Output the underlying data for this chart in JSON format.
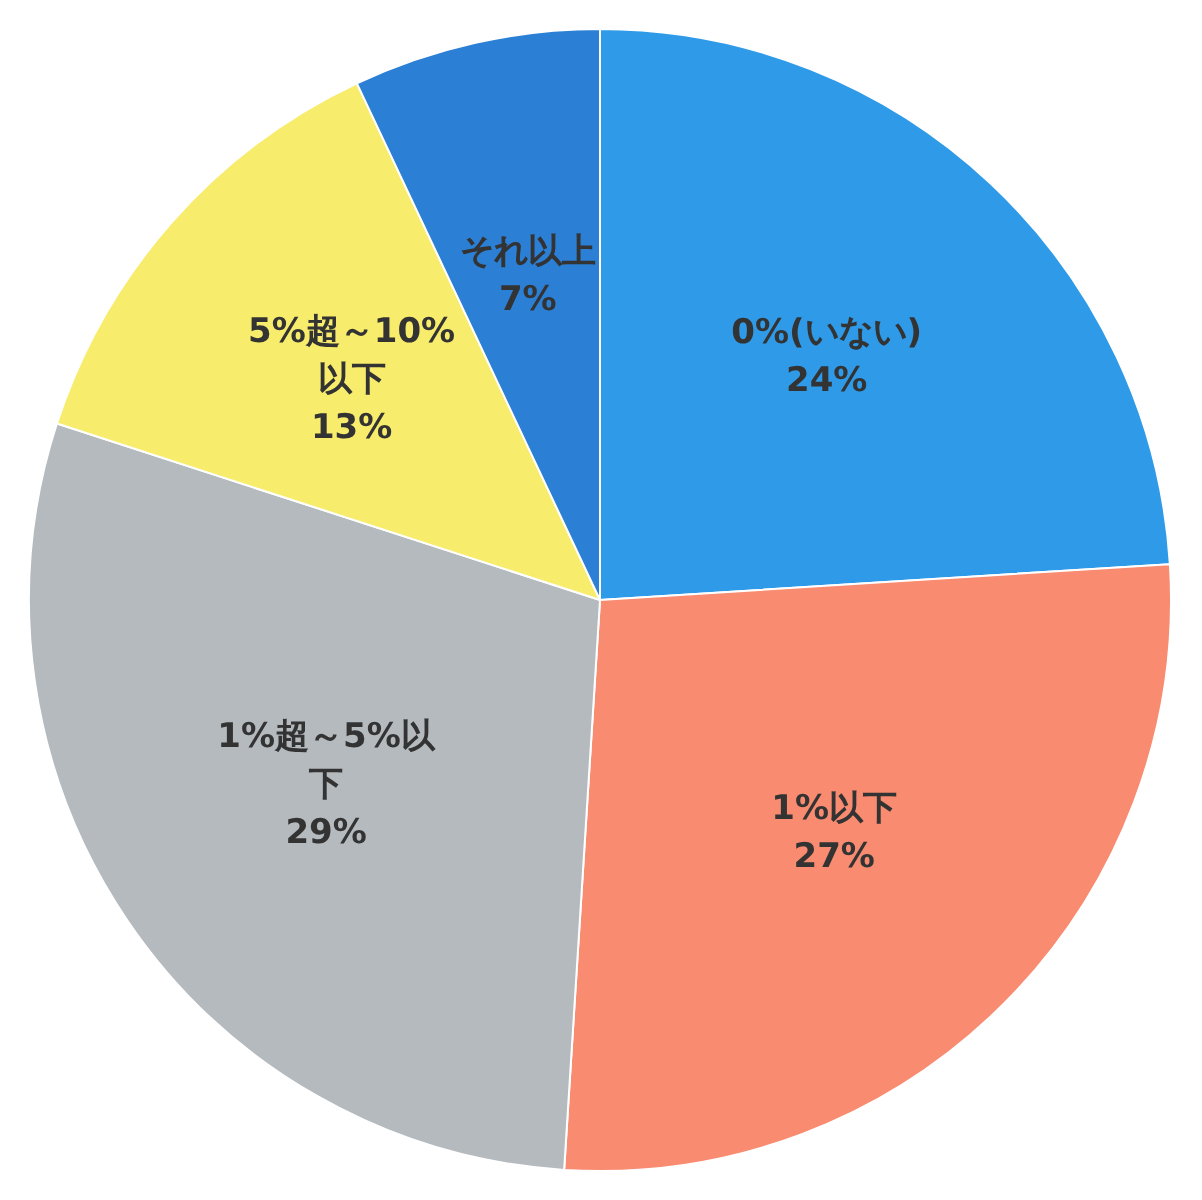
{
  "chart_data": {
    "type": "pie",
    "categories": [
      "0%(いない)",
      "1%以下",
      "1%超～5%以下",
      "5%超～10%以下",
      "それ以上"
    ],
    "values": [
      24,
      27,
      29,
      13,
      7
    ],
    "value_labels": [
      "24%",
      "27%",
      "29%",
      "13%",
      "7%"
    ],
    "colors": [
      "#2f9be8",
      "#f88b70",
      "#b5babf",
      "#f8ec6c",
      "#2b80d6"
    ]
  }
}
